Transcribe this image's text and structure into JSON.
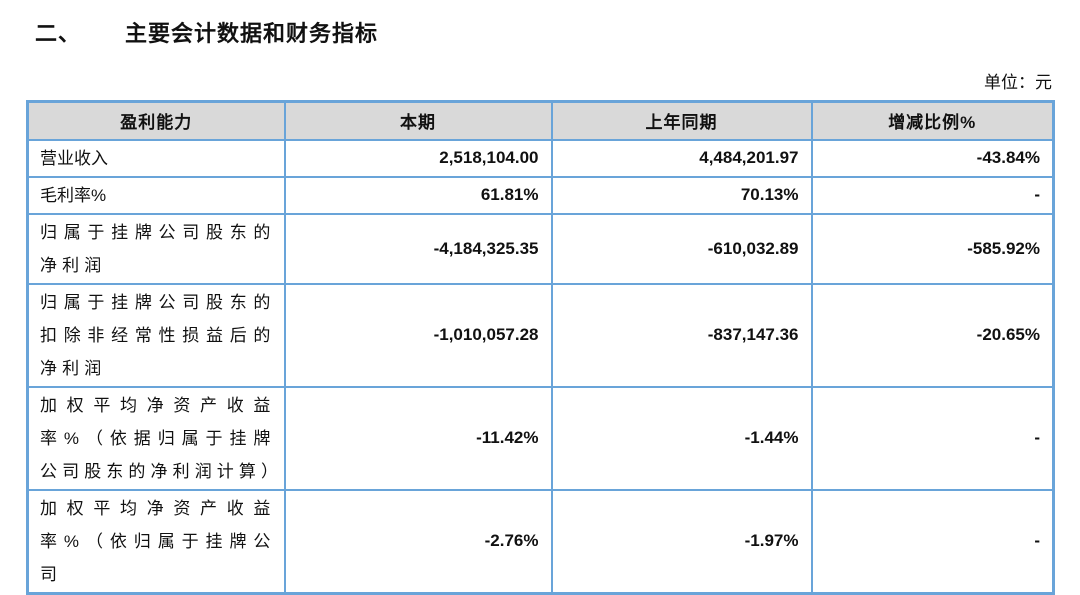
{
  "heading": {
    "section_number": "二、",
    "title": "主要会计数据和财务指标",
    "unit_label": "单位：元"
  },
  "table": {
    "headers": [
      "盈利能力",
      "本期",
      "上年同期",
      "增减比例%"
    ],
    "rows": [
      {
        "label": "营业收入",
        "current": "2,518,104.00",
        "prior": "4,484,201.97",
        "change": "-43.84%"
      },
      {
        "label": "毛利率%",
        "current": "61.81%",
        "prior": "70.13%",
        "change": "-"
      },
      {
        "label": "归属于挂牌公司股东的净利润",
        "current": "-4,184,325.35",
        "prior": "-610,032.89",
        "change": "-585.92%"
      },
      {
        "label": "归属于挂牌公司股东的扣除非经常性损益后的净利润",
        "current": "-1,010,057.28",
        "prior": "-837,147.36",
        "change": "-20.65%"
      },
      {
        "label": "加权平均净资产收益率%（依据归属于挂牌公司股东的净利润计算）",
        "current": "-11.42%",
        "prior": "-1.44%",
        "change": "-"
      },
      {
        "label": "加权平均净资产收益率%（依归属于挂牌公司",
        "current": "-2.76%",
        "prior": "-1.97%",
        "change": "-"
      }
    ],
    "colors": {
      "border": "#69a4d9",
      "header_bg": "#d9d9d9",
      "text": "#111111"
    }
  }
}
